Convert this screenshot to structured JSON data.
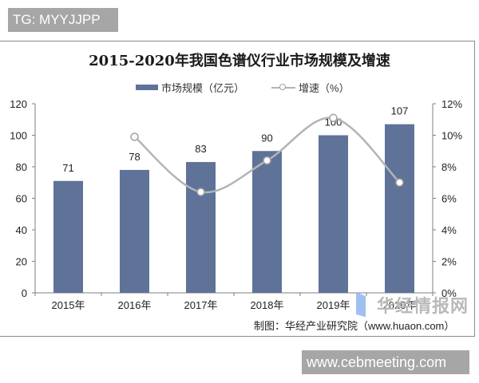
{
  "overlay_tag": "TG: MYYJJPP",
  "footer_site": "www.cebmeeting.com",
  "source_note": "制图：华经产业研究院（www.huaon.com）",
  "watermark": "华经情报网",
  "colors": {
    "bar": "#5f7399",
    "line": "#b4b4b4",
    "marker_fill": "#ffffff",
    "marker_stroke": "#a0a0a0"
  },
  "chart_data": {
    "type": "bar+line",
    "title": "2015-2020年我国色谱仪行业市场规模及增速",
    "categories": [
      "2015年",
      "2016年",
      "2017年",
      "2018年",
      "2019年",
      "2020年"
    ],
    "series": [
      {
        "name": "市场规模（亿元）",
        "type": "bar",
        "axis": "left",
        "values": [
          71,
          78,
          83,
          90,
          100,
          107
        ],
        "data_labels": [
          "71",
          "78",
          "83",
          "90",
          "100",
          "107"
        ]
      },
      {
        "name": "增速（%）",
        "type": "line",
        "axis": "right",
        "values": [
          null,
          9.9,
          6.4,
          8.4,
          11.1,
          7.0
        ],
        "smooth": true
      }
    ],
    "legend": [
      "市场规模（亿元）",
      "增速（%）"
    ],
    "legend_position": "top",
    "y_left": {
      "min": 0,
      "max": 120,
      "ticks": [
        "0",
        "20",
        "40",
        "60",
        "80",
        "100",
        "120"
      ]
    },
    "y_right": {
      "min": 0,
      "max": 12,
      "ticks": [
        "0%",
        "2%",
        "4%",
        "6%",
        "8%",
        "10%",
        "12%"
      ]
    },
    "grid": false,
    "xlabel": "",
    "ylabel": ""
  }
}
